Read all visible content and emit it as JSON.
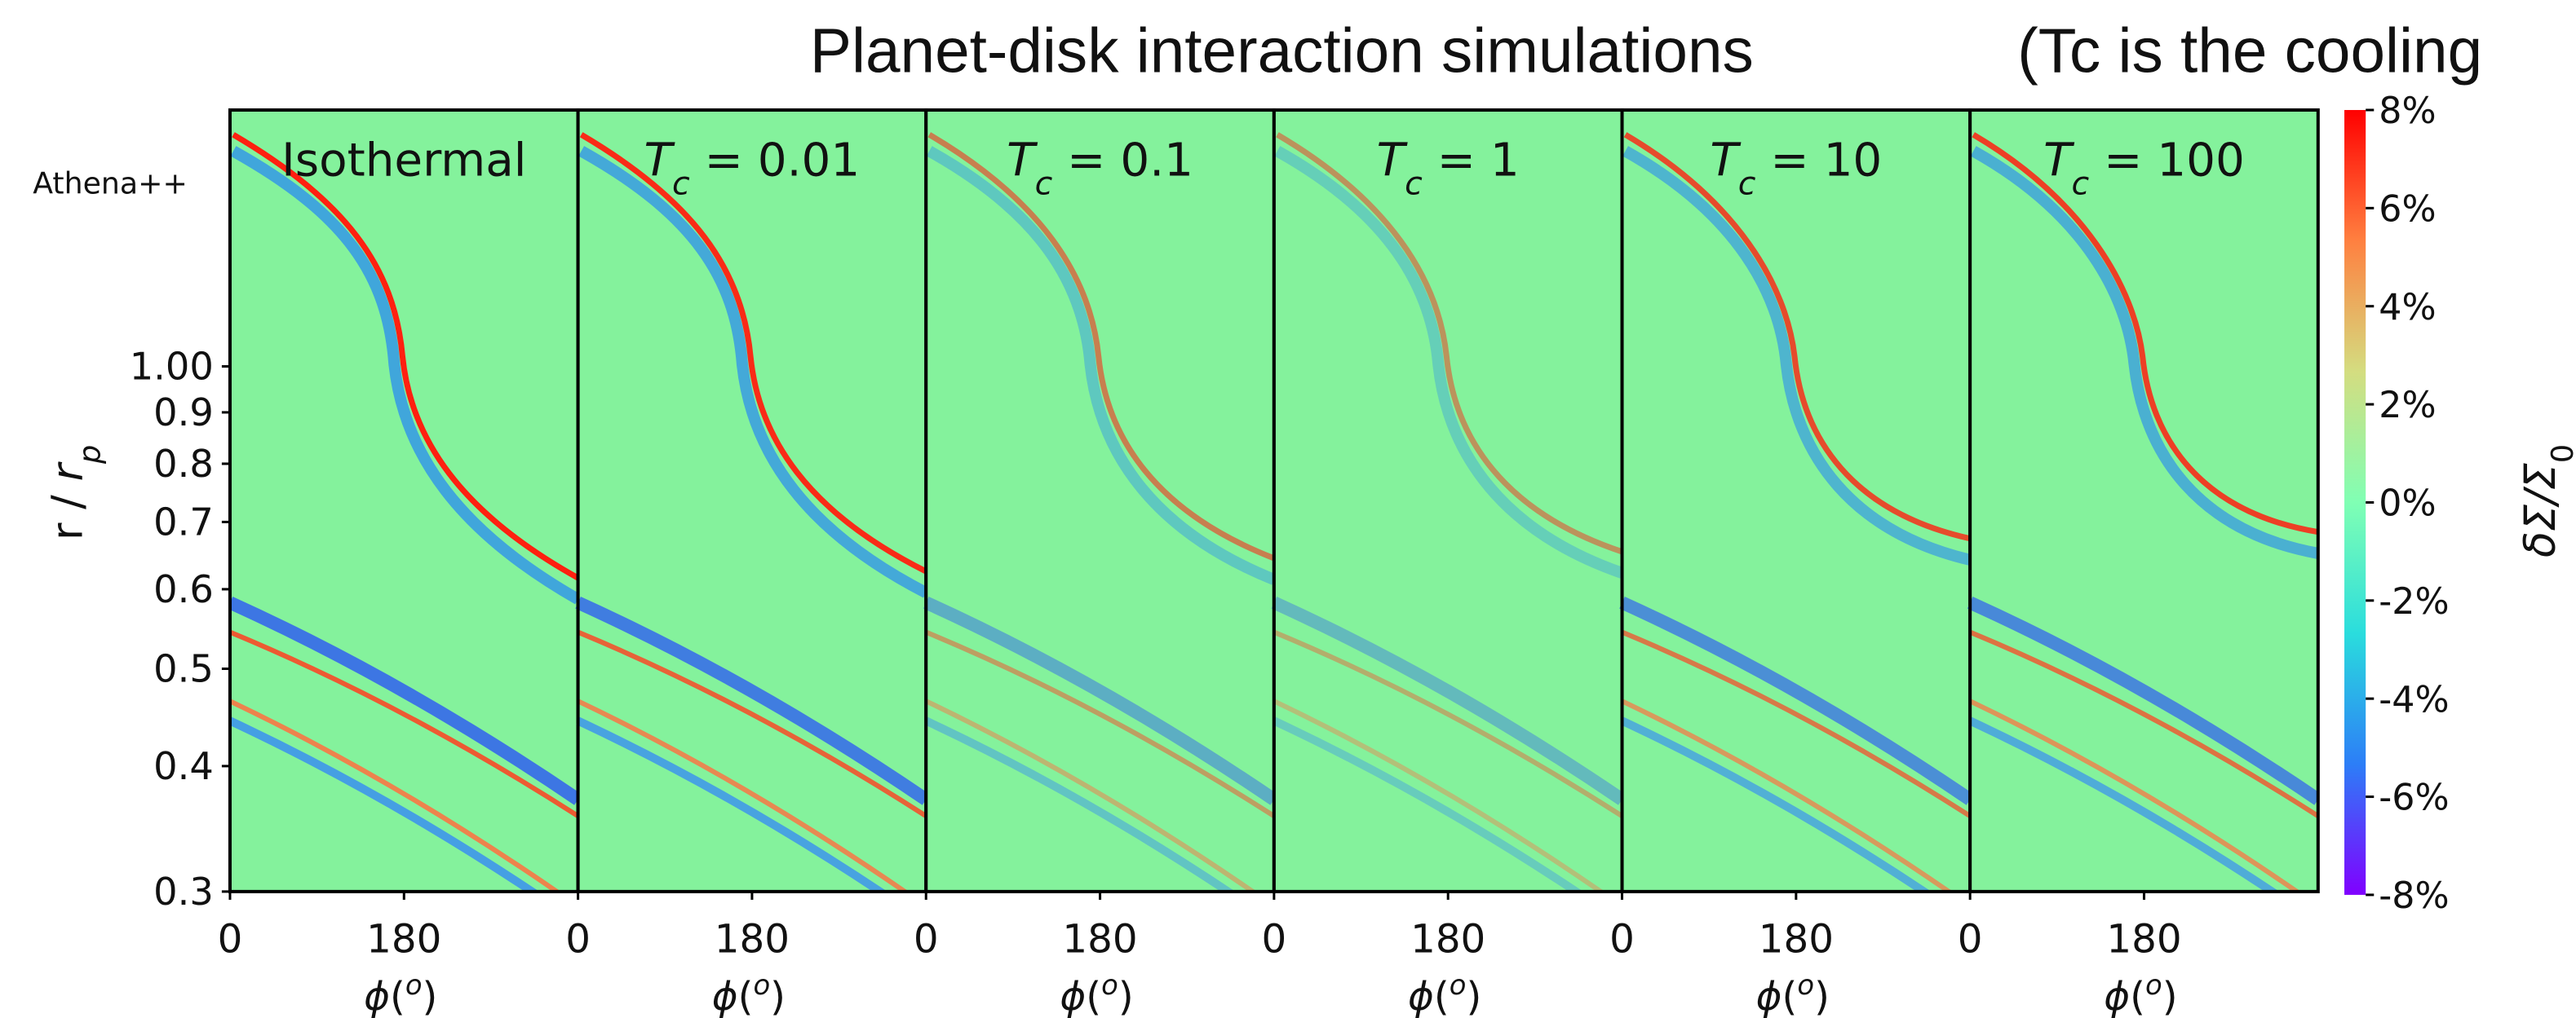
{
  "title": "Planet-disk interaction simulations",
  "title_note": "(Tc is the cooling",
  "chart_data": {
    "type": "heatmap",
    "row_label": "Athena++",
    "panels": [
      {
        "title": [
          {
            "text": "Isothermal"
          }
        ]
      },
      {
        "title": [
          {
            "text": "T",
            "italic": true
          },
          {
            "text": "c",
            "italic": true,
            "sub": true
          },
          {
            "text": " = 0.01"
          }
        ]
      },
      {
        "title": [
          {
            "text": "T",
            "italic": true
          },
          {
            "text": "c",
            "italic": true,
            "sub": true
          },
          {
            "text": " = 0.1"
          }
        ]
      },
      {
        "title": [
          {
            "text": "T",
            "italic": true
          },
          {
            "text": "c",
            "italic": true,
            "sub": true
          },
          {
            "text": " = 1"
          }
        ]
      },
      {
        "title": [
          {
            "text": "T",
            "italic": true
          },
          {
            "text": "c",
            "italic": true,
            "sub": true
          },
          {
            "text": " = 10"
          }
        ]
      },
      {
        "title": [
          {
            "text": "T",
            "italic": true
          },
          {
            "text": "c",
            "italic": true,
            "sub": true
          },
          {
            "text": " = 100"
          }
        ]
      }
    ],
    "xlabel": [
      {
        "text": "ϕ",
        "italic": true
      },
      {
        "text": "("
      },
      {
        "text": "o",
        "italic": true,
        "sup": true
      },
      {
        "text": ")"
      }
    ],
    "ylabel": [
      {
        "text": "r / "
      },
      {
        "text": "r",
        "italic": true
      },
      {
        "text": "p",
        "italic": true,
        "sub": true
      }
    ],
    "xlim": [
      0,
      360
    ],
    "xticks": [
      0,
      180
    ],
    "ylim": [
      0.3,
      1.8
    ],
    "yscale": "log",
    "yticks": [
      {
        "value": 1,
        "label": "1.00"
      },
      0.9,
      0.8,
      0.7,
      0.6,
      0.5,
      0.4,
      0.3
    ],
    "colorbar_label": [
      {
        "text": "δΣ/Σ",
        "italic": true
      },
      {
        "text": "0",
        "sub": true
      }
    ],
    "clim": [
      -8,
      8
    ],
    "cticks": [
      {
        "value": 8,
        "label": "8%"
      },
      {
        "value": 6,
        "label": "6%"
      },
      {
        "value": 4,
        "label": "4%"
      },
      {
        "value": 2,
        "label": "2%"
      },
      {
        "value": 0,
        "label": "0%"
      },
      {
        "value": -2,
        "label": "-2%"
      },
      {
        "value": -4,
        "label": "-4%"
      },
      {
        "value": -6,
        "label": "-6%"
      },
      {
        "value": -8,
        "label": "-8%"
      }
    ],
    "colormap": [
      "#8000ff",
      "#2c7ef7",
      "#2adddd",
      "#80ffb4",
      "#d4dd80",
      "#ff8040",
      "#ff0000"
    ],
    "background": "#84f29c"
  }
}
